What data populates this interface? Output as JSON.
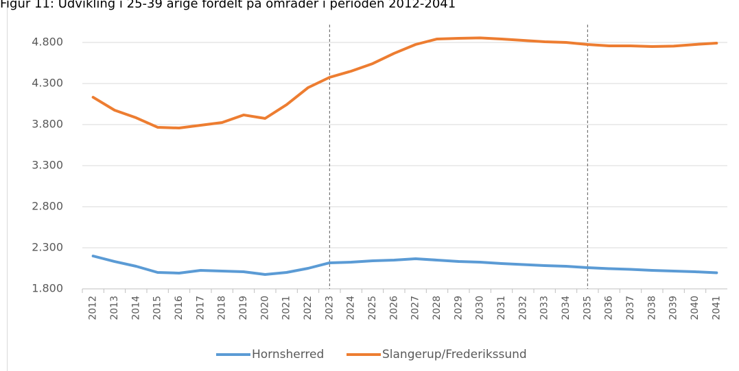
{
  "chart_data": {
    "type": "line",
    "title": "Figur 11: Udvikling i 25-39 årige fordelt på områder i perioden 2012-2041",
    "categories": [
      "2012",
      "2013",
      "2014",
      "2015",
      "2016",
      "2017",
      "2018",
      "2019",
      "2020",
      "2021",
      "2022",
      "2023",
      "2024",
      "2025",
      "2026",
      "2027",
      "2028",
      "2029",
      "2030",
      "2031",
      "2032",
      "2033",
      "2034",
      "2035",
      "2036",
      "2037",
      "2038",
      "2039",
      "2040",
      "2041"
    ],
    "series": [
      {
        "name": "Hornsherred",
        "color": "#5b9bd5",
        "values": [
          2200,
          2133,
          2075,
          2000,
          1992,
          2025,
          2017,
          2008,
          1975,
          2000,
          2050,
          2117,
          2125,
          2142,
          2150,
          2167,
          2150,
          2133,
          2125,
          2108,
          2096,
          2083,
          2075,
          2058,
          2046,
          2038,
          2025,
          2017,
          2008,
          1996
        ]
      },
      {
        "name": "Slangerup/Frederikssund",
        "color": "#ed7d31",
        "values": [
          4133,
          3975,
          3883,
          3767,
          3758,
          3792,
          3825,
          3917,
          3875,
          4042,
          4250,
          4375,
          4450,
          4542,
          4667,
          4775,
          4842,
          4850,
          4855,
          4842,
          4825,
          4808,
          4800,
          4775,
          4758,
          4758,
          4750,
          4755,
          4775,
          4792
        ]
      }
    ],
    "ylim": [
      1800,
      5050
    ],
    "yticks": [
      {
        "value": 1800,
        "label": "1.800"
      },
      {
        "value": 2300,
        "label": "2.300"
      },
      {
        "value": 2800,
        "label": "2.800"
      },
      {
        "value": 3300,
        "label": "3.300"
      },
      {
        "value": 3800,
        "label": "3.800"
      },
      {
        "value": 4300,
        "label": "4.300"
      },
      {
        "value": 4800,
        "label": "4.800"
      }
    ],
    "grid": true,
    "vlines": [
      "2023",
      "2035"
    ],
    "legend": "bottom"
  }
}
